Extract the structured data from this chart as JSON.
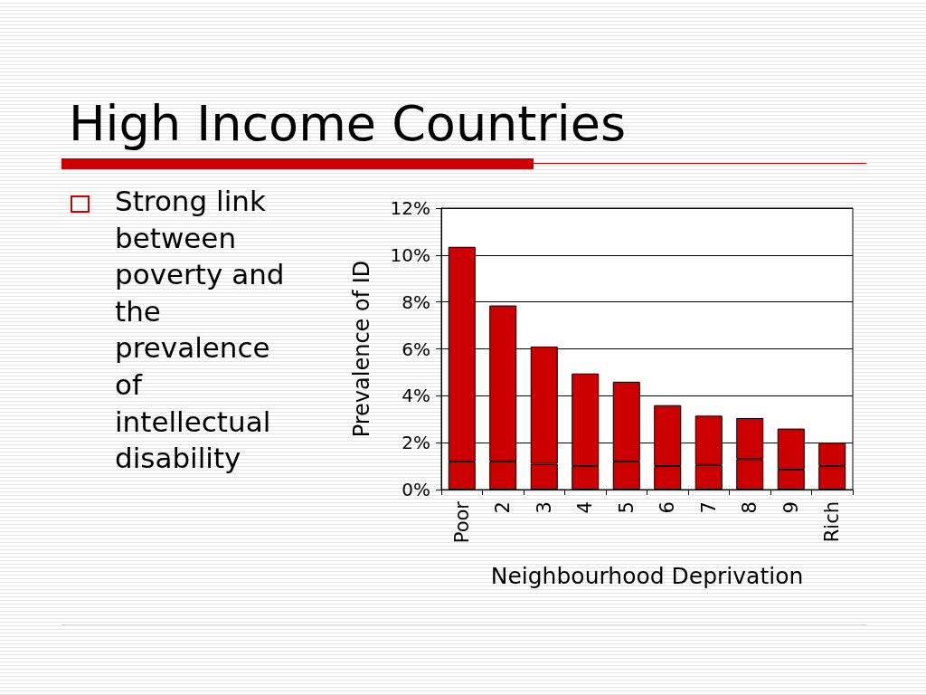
{
  "chart_data": {
    "type": "bar",
    "title": "High Income Countries",
    "annotations": [
      "Strong link between poverty and the prevalence of intellectual disability"
    ],
    "xlabel": "Neighbourhood Deprivation",
    "ylabel": "Prevalence of ID",
    "categories": [
      "Poor",
      "2",
      "3",
      "4",
      "5",
      "6",
      "7",
      "8",
      "9",
      "Rich"
    ],
    "stacked": true,
    "series": [
      {
        "color": "#cc0000",
        "values": [
          1.2,
          1.2,
          1.1,
          1.0,
          1.2,
          1.0,
          1.05,
          1.3,
          0.85,
          1.0
        ]
      },
      {
        "color": "#cc0000",
        "values": [
          9.15,
          6.65,
          5.0,
          3.95,
          3.4,
          2.6,
          2.1,
          1.75,
          1.75,
          1.0
        ]
      }
    ],
    "ylim": [
      0,
      12
    ],
    "yticks": [
      {
        "value": 0,
        "label": "0%"
      },
      {
        "value": 2,
        "label": "2%"
      },
      {
        "value": 4,
        "label": "4%"
      },
      {
        "value": 6,
        "label": "6%"
      },
      {
        "value": 8,
        "label": "8%"
      },
      {
        "value": 10,
        "label": "10%"
      },
      {
        "value": 12,
        "label": "12%"
      }
    ],
    "grid": "y"
  }
}
